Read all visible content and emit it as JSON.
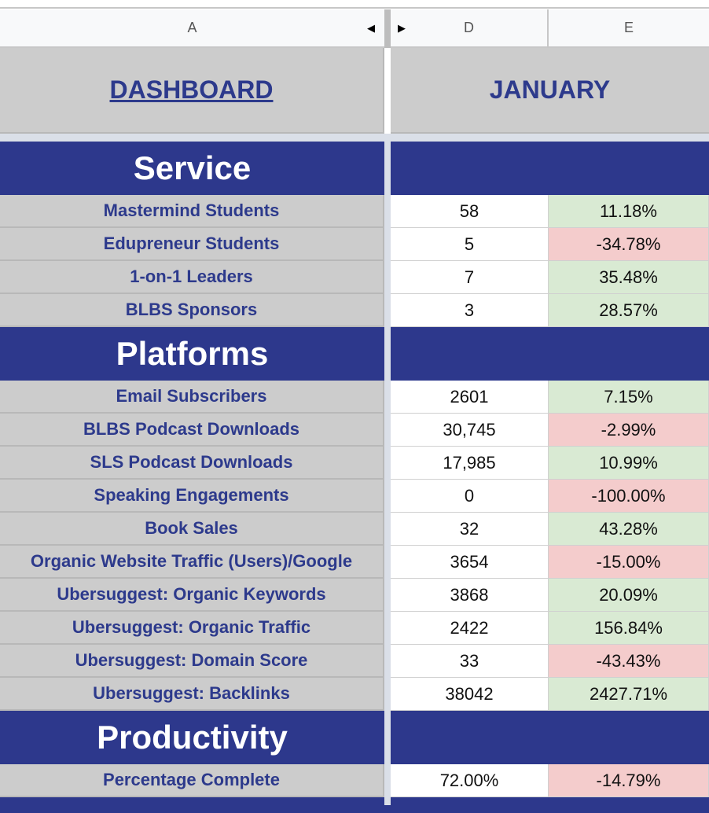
{
  "columns": [
    "A",
    "D",
    "E"
  ],
  "title_row": {
    "dashboard": "DASHBOARD",
    "month": "JANUARY"
  },
  "sections": [
    {
      "name": "Service",
      "rows": [
        {
          "label": "Mastermind Students",
          "value": "58",
          "change": "11.18%",
          "trend": "positive"
        },
        {
          "label": "Edupreneur Students",
          "value": "5",
          "change": "-34.78%",
          "trend": "negative"
        },
        {
          "label": "1-on-1 Leaders",
          "value": "7",
          "change": "35.48%",
          "trend": "positive"
        },
        {
          "label": "BLBS Sponsors",
          "value": "3",
          "change": "28.57%",
          "trend": "positive"
        }
      ]
    },
    {
      "name": "Platforms",
      "rows": [
        {
          "label": "Email Subscribers",
          "value": "2601",
          "change": "7.15%",
          "trend": "positive"
        },
        {
          "label": "BLBS Podcast Downloads",
          "value": "30,745",
          "change": "-2.99%",
          "trend": "negative"
        },
        {
          "label": "SLS Podcast Downloads",
          "value": "17,985",
          "change": "10.99%",
          "trend": "positive"
        },
        {
          "label": "Speaking Engagements",
          "value": "0",
          "change": "-100.00%",
          "trend": "negative"
        },
        {
          "label": "Book Sales",
          "value": "32",
          "change": "43.28%",
          "trend": "positive"
        },
        {
          "label": "Organic Website Traffic (Users)/Google",
          "value": "3654",
          "change": "-15.00%",
          "trend": "negative"
        },
        {
          "label": "Ubersuggest: Organic Keywords",
          "value": "3868",
          "change": "20.09%",
          "trend": "positive"
        },
        {
          "label": "Ubersuggest: Organic Traffic",
          "value": "2422",
          "change": "156.84%",
          "trend": "positive"
        },
        {
          "label": "Ubersuggest: Domain Score",
          "value": "33",
          "change": "-43.43%",
          "trend": "negative"
        },
        {
          "label": "Ubersuggest: Backlinks",
          "value": "38042",
          "change": "2427.71%",
          "trend": "positive"
        }
      ]
    },
    {
      "name": "Productivity",
      "rows": [
        {
          "label": "Percentage Complete",
          "value": "72.00%",
          "change": "-14.79%",
          "trend": "negative"
        }
      ]
    }
  ],
  "colors": {
    "band": "#2d388c",
    "label_text": "#2d3a8c",
    "positive": "#d9ead3",
    "negative": "#f4cccc"
  }
}
